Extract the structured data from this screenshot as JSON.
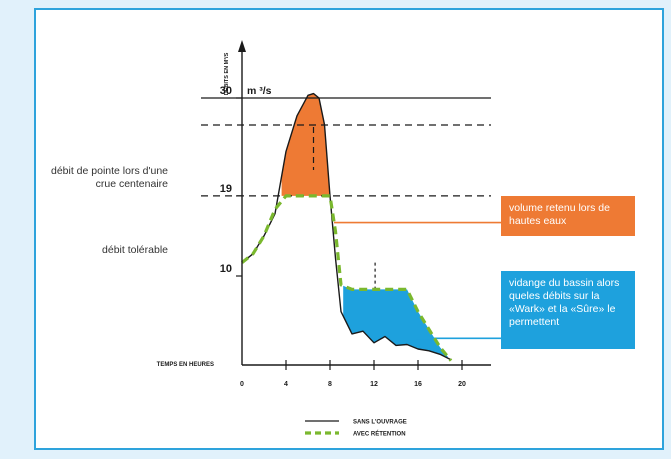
{
  "chart_data": {
    "type": "line",
    "ylabel": "DÉBITS EN M³/S",
    "xlabel": "TEMPS EN HEURES",
    "x_ticks": [
      0,
      4,
      8,
      12,
      16,
      20
    ],
    "xlim": [
      0,
      22
    ],
    "ylim": [
      0,
      45
    ],
    "y_levels": [
      {
        "value": 10,
        "label": "10"
      },
      {
        "value": 19,
        "label": "19"
      },
      {
        "value": 30,
        "label": "30",
        "unit": "m ³/s"
      }
    ],
    "series": [
      {
        "name": "SANS L'OUVRAGE",
        "style": "solid",
        "color": "#1a1a1a",
        "x": [
          0,
          1,
          2,
          3,
          4,
          5,
          6,
          6.5,
          7,
          7.5,
          8,
          8.5,
          9,
          10,
          11,
          12,
          13,
          14,
          15,
          16,
          17,
          18,
          19
        ],
        "y": [
          11.5,
          12.5,
          14.5,
          17,
          24,
          28,
          30.3,
          30.5,
          30,
          27,
          19,
          12,
          6,
          3.5,
          3.8,
          2.5,
          3.2,
          2.2,
          2.3,
          1.8,
          1.6,
          1.2,
          0.6
        ]
      },
      {
        "name": "AVEC RÉTENTION",
        "style": "dashed",
        "color": "#7ab82e",
        "x": [
          0,
          1,
          2,
          3,
          4,
          5,
          6,
          7,
          8,
          8.5,
          9,
          10,
          11,
          12,
          13,
          14,
          15,
          16,
          17,
          18,
          19
        ],
        "y": [
          11.5,
          12.5,
          14.5,
          17.5,
          19,
          19,
          19,
          19,
          19,
          15,
          9,
          8.5,
          8.5,
          8.5,
          8.5,
          8.5,
          8.5,
          6,
          4,
          2,
          0.5
        ]
      }
    ],
    "legend": {
      "position": "bottom-center",
      "entries": [
        "SANS L'OUVRAGE",
        "AVEC RÉTENTION"
      ]
    },
    "retained_area_color": "#ee7a34",
    "drained_area_color": "#1ea1dd"
  },
  "annotations": {
    "peak_label": "débit de pointe lors d'une crue centenaire",
    "tolerable_label": "débit tolérable",
    "retained_box": "volume retenu lors de hautes eaux",
    "drain_box": "vidange du bassin alors queles débits sur la «Wark» et la «Sûre» le permettent"
  }
}
